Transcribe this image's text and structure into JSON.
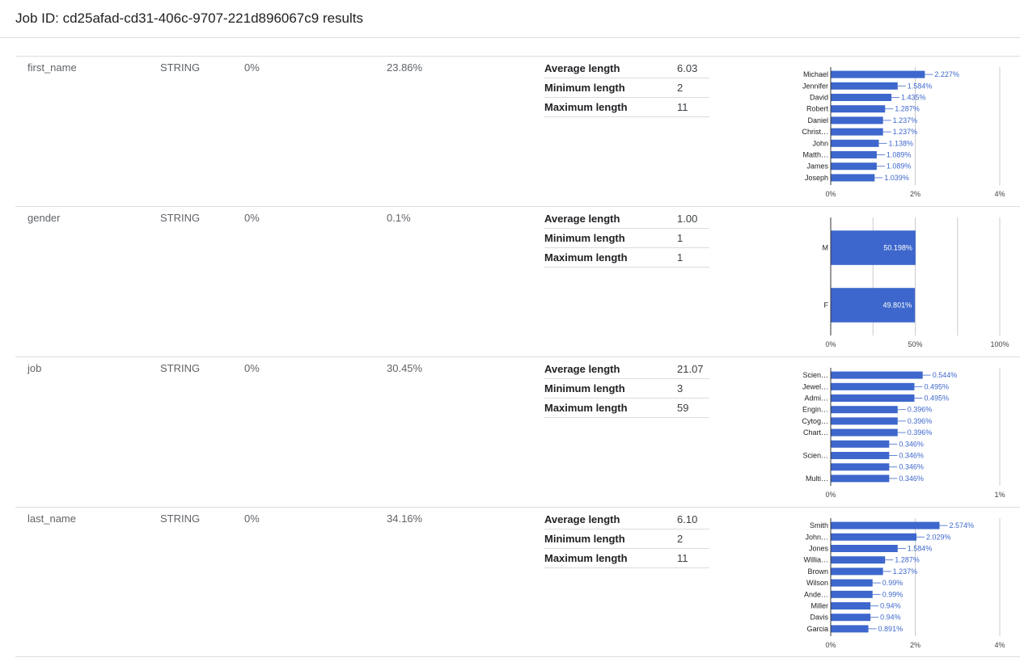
{
  "header": {
    "title": "Job ID: cd25afad-cd31-406c-9707-221d896067c9 results"
  },
  "stats_labels": {
    "avg": "Average length",
    "min": "Minimum length",
    "max": "Maximum length"
  },
  "accent_color": "#3d67cc",
  "columns": [
    {
      "name": "first_name",
      "type": "STRING",
      "null_pct": "0%",
      "unique_pct": "23.86%",
      "avg_length": "6.03",
      "min_length": "2",
      "max_length": "11",
      "chart_data": {
        "type": "bar",
        "orientation": "horizontal",
        "categories": [
          "Michael",
          "Jennifer",
          "David",
          "Robert",
          "Daniel",
          "Christ…",
          "John",
          "Matth…",
          "James",
          "Joseph"
        ],
        "values": [
          2.227,
          1.584,
          1.435,
          1.287,
          1.237,
          1.237,
          1.138,
          1.089,
          1.089,
          1.039
        ],
        "value_labels": [
          "2.227%",
          "1.584%",
          "1.435%",
          "1.287%",
          "1.237%",
          "1.237%",
          "1.138%",
          "1.089%",
          "1.089%",
          "1.039%"
        ],
        "xlim": [
          0,
          4
        ],
        "xticks": [
          "0%",
          "2%",
          "4%"
        ],
        "labels_inside": false
      }
    },
    {
      "name": "gender",
      "type": "STRING",
      "null_pct": "0%",
      "unique_pct": "0.1%",
      "avg_length": "1.00",
      "min_length": "1",
      "max_length": "1",
      "chart_data": {
        "type": "bar",
        "orientation": "horizontal",
        "categories": [
          "M",
          "F"
        ],
        "values": [
          50.198,
          49.801
        ],
        "value_labels": [
          "50.198%",
          "49.801%"
        ],
        "xlim": [
          0,
          100
        ],
        "xticks": [
          "0%",
          "50%",
          "100%"
        ],
        "labels_inside": true
      }
    },
    {
      "name": "job",
      "type": "STRING",
      "null_pct": "0%",
      "unique_pct": "30.45%",
      "avg_length": "21.07",
      "min_length": "3",
      "max_length": "59",
      "chart_data": {
        "type": "bar",
        "orientation": "horizontal",
        "categories": [
          "Scien…",
          "Jewel…",
          "Admi…",
          "Engin…",
          "Cytog…",
          "Chart…",
          "",
          "Scien…",
          "",
          "Multi…"
        ],
        "values": [
          0.544,
          0.495,
          0.495,
          0.396,
          0.396,
          0.396,
          0.346,
          0.346,
          0.346,
          0.346
        ],
        "value_labels": [
          "0.544%",
          "0.495%",
          "0.495%",
          "0.396%",
          "0.396%",
          "0.396%",
          "0.346%",
          "0.346%",
          "0.346%",
          "0.346%"
        ],
        "xlim": [
          0,
          1
        ],
        "xticks": [
          "0%",
          "1%"
        ],
        "labels_inside": false
      }
    },
    {
      "name": "last_name",
      "type": "STRING",
      "null_pct": "0%",
      "unique_pct": "34.16%",
      "avg_length": "6.10",
      "min_length": "2",
      "max_length": "11",
      "chart_data": {
        "type": "bar",
        "orientation": "horizontal",
        "categories": [
          "Smith",
          "John…",
          "Jones",
          "Willia…",
          "Brown",
          "Wilson",
          "Ande…",
          "Miller",
          "Davis",
          "Garcia"
        ],
        "values": [
          2.574,
          2.029,
          1.584,
          1.287,
          1.237,
          0.99,
          0.99,
          0.94,
          0.94,
          0.891
        ],
        "value_labels": [
          "2.574%",
          "2.029%",
          "1.584%",
          "1.287%",
          "1.237%",
          "0.99%",
          "0.99%",
          "0.94%",
          "0.94%",
          "0.891%"
        ],
        "xlim": [
          0,
          4
        ],
        "xticks": [
          "0%",
          "2%",
          "4%"
        ],
        "labels_inside": false
      }
    }
  ]
}
